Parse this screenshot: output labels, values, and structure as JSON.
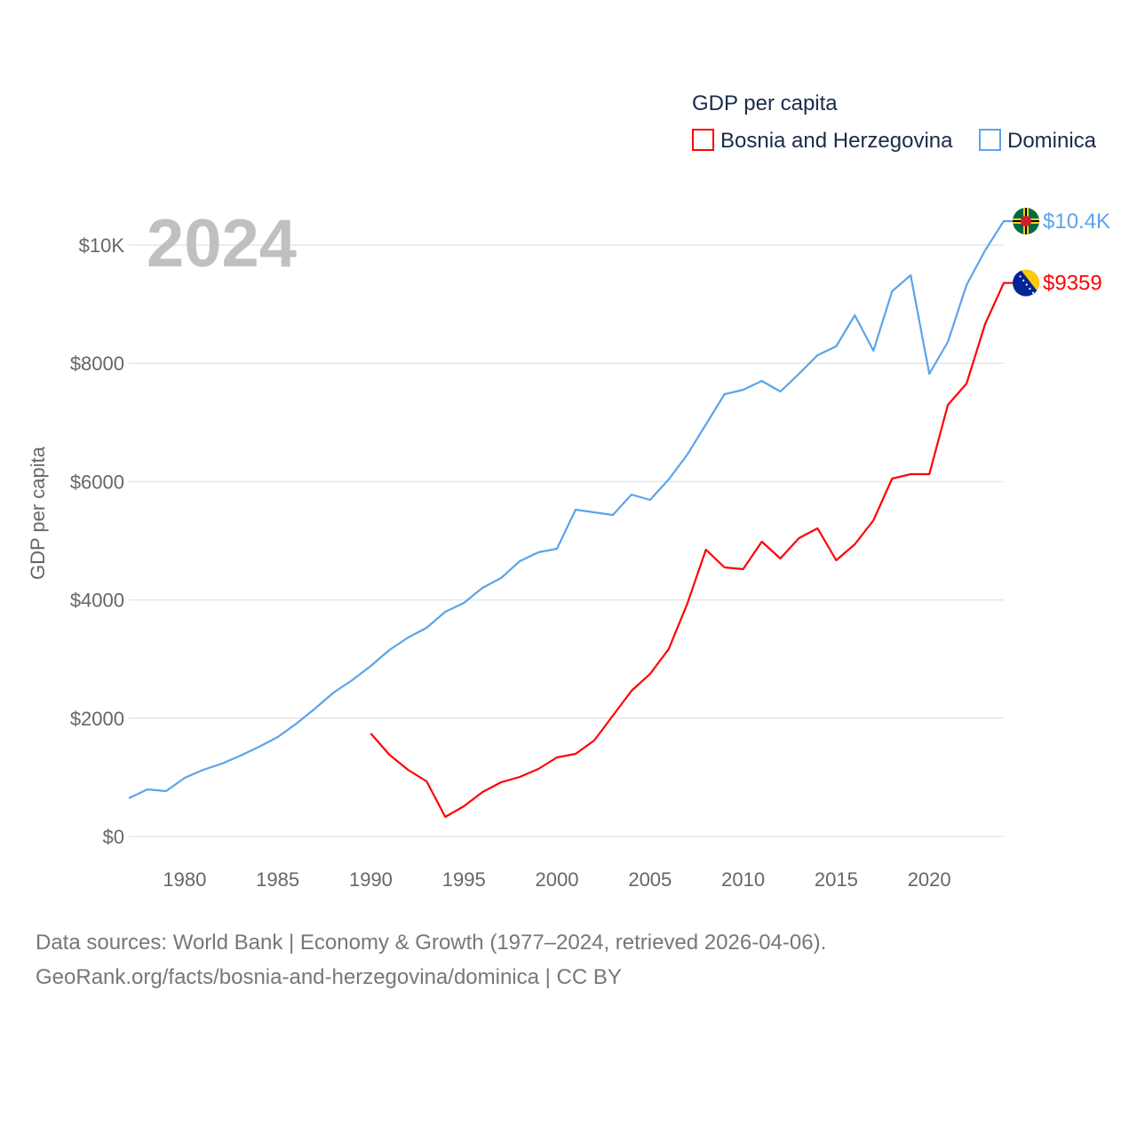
{
  "chart_data": {
    "type": "line",
    "year_label": "2024",
    "ylabel": "GDP per capita",
    "ylim": [
      0,
      10500
    ],
    "xlim": [
      1977,
      2024
    ],
    "yticks": [
      0,
      2000,
      4000,
      6000,
      8000,
      10000
    ],
    "ytick_labels": [
      "$0",
      "$2000",
      "$4000",
      "$6000",
      "$8000",
      "$10K"
    ],
    "xticks": [
      1980,
      1985,
      1990,
      1995,
      2000,
      2005,
      2010,
      2015,
      2020
    ],
    "xtick_labels": [
      "1980",
      "1985",
      "1990",
      "1995",
      "2000",
      "2005",
      "2010",
      "2015",
      "2020"
    ],
    "grid": true,
    "legend": {
      "title": "GDP per capita",
      "placement": "top-right"
    },
    "series": [
      {
        "name": "Bosnia and Herzegovina",
        "color": "#ff0000",
        "end_label": "$9359",
        "flag": "bosnia-flag",
        "x": [
          1990,
          1991,
          1992,
          1993,
          1994,
          1995,
          1996,
          1997,
          1998,
          1999,
          2000,
          2001,
          2002,
          2003,
          2004,
          2005,
          2006,
          2007,
          2008,
          2009,
          2010,
          2011,
          2012,
          2013,
          2014,
          2015,
          2016,
          2017,
          2018,
          2019,
          2020,
          2021,
          2022,
          2023,
          2024
        ],
        "values": [
          1742,
          1381,
          1126,
          931,
          330,
          511,
          751,
          916,
          1006,
          1141,
          1336,
          1396,
          1622,
          2042,
          2462,
          2748,
          3168,
          3934,
          4850,
          4550,
          4520,
          4985,
          4700,
          5045,
          5210,
          4670,
          4940,
          5345,
          6051,
          6126,
          6126,
          7297,
          7658,
          8664,
          9359
        ]
      },
      {
        "name": "Dominica",
        "color": "#5ba4ea",
        "end_label": "$10.4K",
        "flag": "dominica-flag",
        "x": [
          1977,
          1978,
          1979,
          1980,
          1981,
          1982,
          1983,
          1984,
          1985,
          1986,
          1987,
          1988,
          1989,
          1990,
          1991,
          1992,
          1993,
          1994,
          1995,
          1996,
          1997,
          1998,
          1999,
          2000,
          2001,
          2002,
          2003,
          2004,
          2005,
          2006,
          2007,
          2008,
          2009,
          2010,
          2011,
          2012,
          2013,
          2014,
          2015,
          2016,
          2017,
          2018,
          2019,
          2020,
          2021,
          2022,
          2023,
          2024
        ],
        "values": [
          645,
          796,
          766,
          991,
          1126,
          1231,
          1366,
          1517,
          1682,
          1907,
          2162,
          2432,
          2643,
          2883,
          3153,
          3363,
          3529,
          3799,
          3949,
          4204,
          4369,
          4655,
          4805,
          4865,
          5526,
          5480,
          5435,
          5781,
          5691,
          6036,
          6456,
          6967,
          7477,
          7553,
          7703,
          7523,
          7823,
          8138,
          8288,
          8814,
          8213,
          9219,
          9489,
          7823,
          8363,
          9324,
          9910,
          10405
        ]
      }
    ]
  },
  "footer": {
    "line1": "Data sources: World Bank | Economy & Growth (1977–2024, retrieved 2026-04-06).",
    "line2": "GeoRank.org/facts/bosnia-and-herzegovina/dominica | CC BY"
  }
}
